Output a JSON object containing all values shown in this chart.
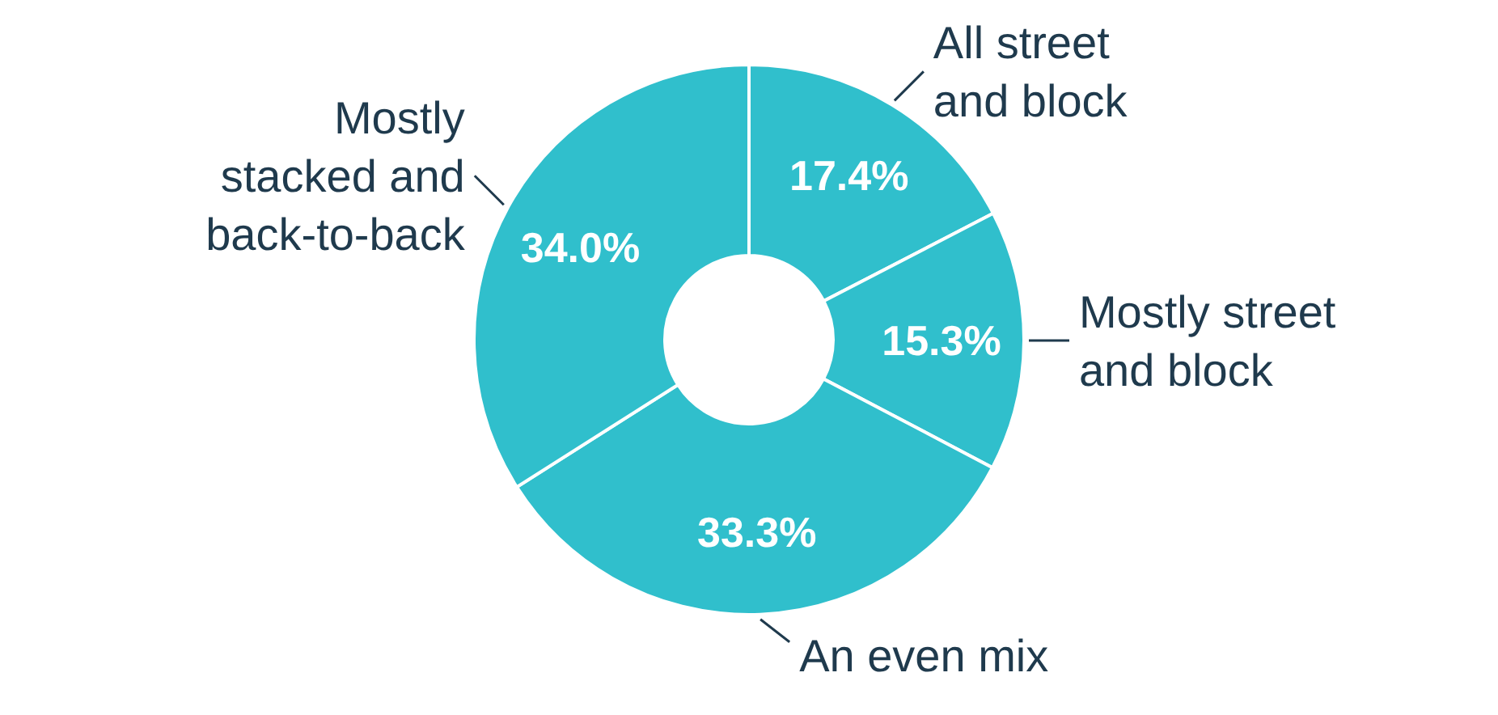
{
  "chart_data": {
    "type": "donut",
    "categories": [
      "All street and block",
      "Mostly street and block",
      "An even mix",
      "Mostly stacked and back-to-back"
    ],
    "values": [
      17.4,
      15.3,
      33.3,
      34.0
    ],
    "value_labels": [
      "17.4%",
      "15.3%",
      "33.3%",
      "34.0%"
    ],
    "colors": [
      "#30bfcc",
      "#30bfcc",
      "#30bfcc",
      "#30bfcc"
    ]
  }
}
